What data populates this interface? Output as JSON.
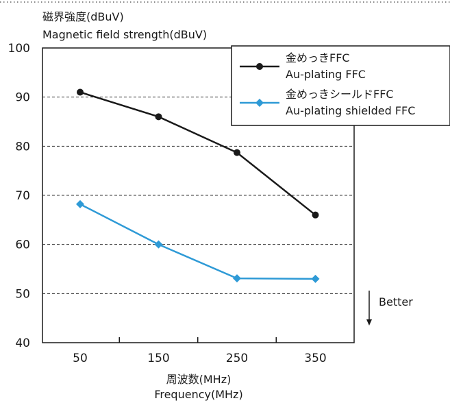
{
  "chart_data": {
    "type": "line",
    "ylabel_line1": "磁界強度(dBuV)",
    "ylabel_line2": "Magnetic field strength(dBuV)",
    "xlabel_line1": "周波数(MHz)",
    "xlabel_line2": "Frequency(MHz)",
    "categories": [
      "50",
      "150",
      "250",
      "350"
    ],
    "yticks": [
      "100",
      "90",
      "80",
      "70",
      "60",
      "50",
      "40"
    ],
    "ylim": [
      40,
      100
    ],
    "grid": "horizontal-dashed",
    "legend_position": "top-right",
    "series": [
      {
        "name_line1": "金めっきFFC",
        "name_line2": "Au-plating FFC",
        "values": [
          91,
          86,
          78.7,
          66
        ],
        "color": "#1a1a1a",
        "marker": "circle"
      },
      {
        "name_line1": "金めっきシールドFFC",
        "name_line2": "Au-plating shielded FFC",
        "values": [
          68.2,
          60,
          53.1,
          53
        ],
        "color": "#2e9ad6",
        "marker": "diamond"
      }
    ],
    "annotation": "Better"
  }
}
